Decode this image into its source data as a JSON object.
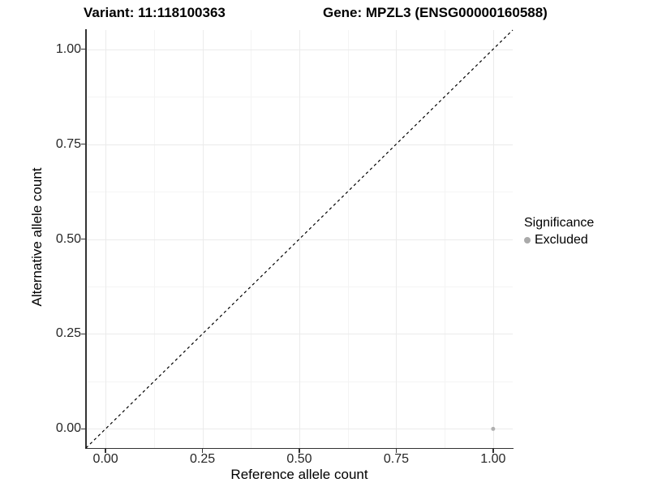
{
  "chart_data": {
    "type": "scatter",
    "titles": {
      "left": "Variant: 11:118100363",
      "right": "Gene: MPZL3 (ENSG00000160588)"
    },
    "xlabel": "Reference allele count",
    "ylabel": "Alternative allele count",
    "xlim": [
      -0.0505,
      1.0505
    ],
    "ylim": [
      -0.0505,
      1.0505
    ],
    "x_tick_values": [
      0,
      0.25,
      0.5,
      0.75,
      1.0
    ],
    "x_tick_labels": [
      "0.00",
      "0.25",
      "0.50",
      "0.75",
      "1.00"
    ],
    "y_tick_values": [
      0,
      0.25,
      0.5,
      0.75,
      1.0
    ],
    "y_tick_labels": [
      "0.00",
      "0.25",
      "0.50",
      "0.75",
      "1.00"
    ],
    "x_minor_values": [
      0.125,
      0.375,
      0.625,
      0.875
    ],
    "y_minor_values": [
      0.125,
      0.375,
      0.625,
      0.875
    ],
    "grid": "on",
    "identity_line": {
      "style": "dashed",
      "color": "#000000",
      "from": [
        -0.0505,
        -0.0505
      ],
      "to": [
        1.0505,
        1.0505
      ]
    },
    "series": [
      {
        "name": "Excluded",
        "color": "#b0b0b0",
        "marker": "circle",
        "points": [
          [
            1.0,
            0.0
          ]
        ]
      }
    ],
    "legend": {
      "title": "Significance",
      "position": "right",
      "items": [
        {
          "label": "Excluded",
          "color": "#aaaaaa",
          "marker": "circle"
        }
      ]
    },
    "colors": {
      "grid_major": "#ebebeb",
      "grid_minor": "#f4f4f4",
      "axis_line": "#333333",
      "tick_text": "#262626",
      "title_text": "#000000",
      "background": "#ffffff"
    }
  }
}
